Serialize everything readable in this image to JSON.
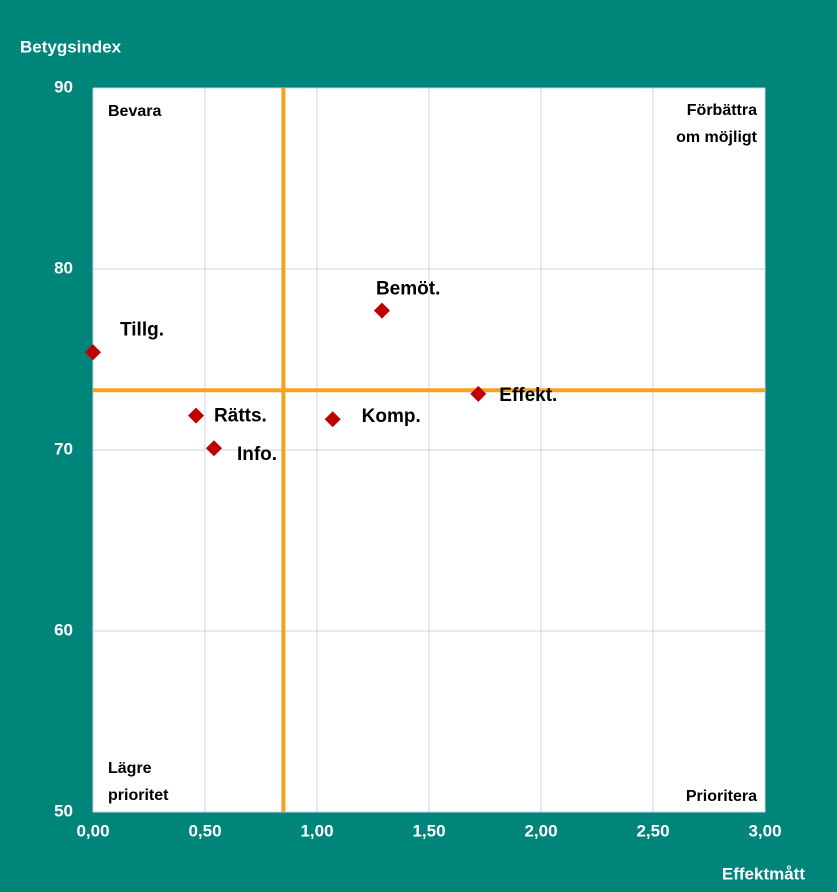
{
  "chart_data": {
    "type": "scatter",
    "y_label": "Betygsindex",
    "x_label": "Effektmått",
    "x": [
      0.0,
      1.29,
      1.72,
      0.46,
      1.07,
      0.54
    ],
    "values": [
      75.4,
      77.7,
      73.1,
      71.9,
      71.7,
      70.1
    ],
    "labels": [
      "Tillg.",
      "Bemöt.",
      "Effekt.",
      "Rätts.",
      "Komp.",
      "Info."
    ],
    "color": "#c00000",
    "xlim": [
      0,
      3
    ],
    "ylim": [
      50,
      90
    ],
    "xticks": [
      {
        "value": 0,
        "label": "0,00"
      },
      {
        "value": 0.5,
        "label": "0,50"
      },
      {
        "value": 1,
        "label": "1,00"
      },
      {
        "value": 1.5,
        "label": "1,50"
      },
      {
        "value": 2,
        "label": "2,00"
      },
      {
        "value": 2.5,
        "label": "2,50"
      },
      {
        "value": 3,
        "label": "3,00"
      }
    ],
    "yticks": [
      50,
      60,
      70,
      80,
      90
    ],
    "grid": true,
    "reference_lines": {
      "x": 0.85,
      "y": 73.3,
      "color": "#f5a21e"
    },
    "quadrant_labels": {
      "top_left": [
        "Bevara"
      ],
      "top_right": [
        "Förbättra",
        "om möjligt"
      ],
      "bottom_left": [
        "Lägre",
        "prioritet"
      ],
      "bottom_right": [
        "Prioritera"
      ]
    }
  }
}
